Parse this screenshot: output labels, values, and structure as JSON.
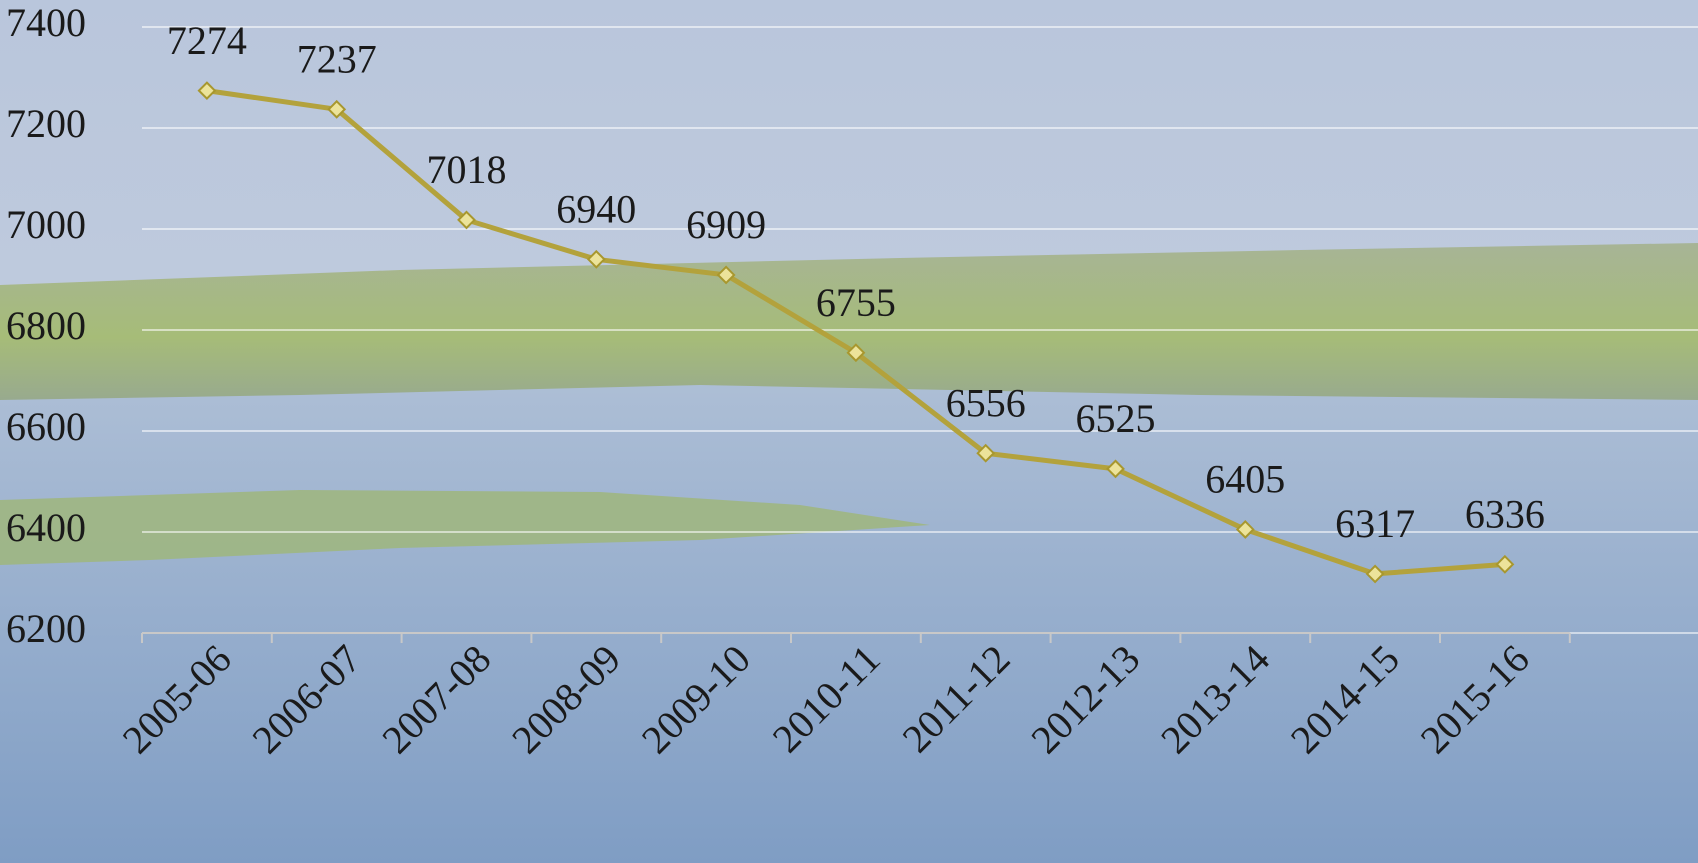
{
  "chart_data": {
    "type": "line",
    "categories": [
      "2005-06",
      "2006-07",
      "2007-08",
      "2008-09",
      "2009-10",
      "2010-11",
      "2011-12",
      "2012-13",
      "2013-14",
      "2014-15",
      "2015-16"
    ],
    "values": [
      7274,
      7237,
      7018,
      6940,
      6909,
      6755,
      6556,
      6525,
      6405,
      6317,
      6336
    ],
    "color": "#b3a23c",
    "ylim": [
      6200,
      7400
    ],
    "yticks": [
      6200,
      6400,
      6600,
      6800,
      7000,
      7200,
      7400
    ],
    "grid": true
  }
}
